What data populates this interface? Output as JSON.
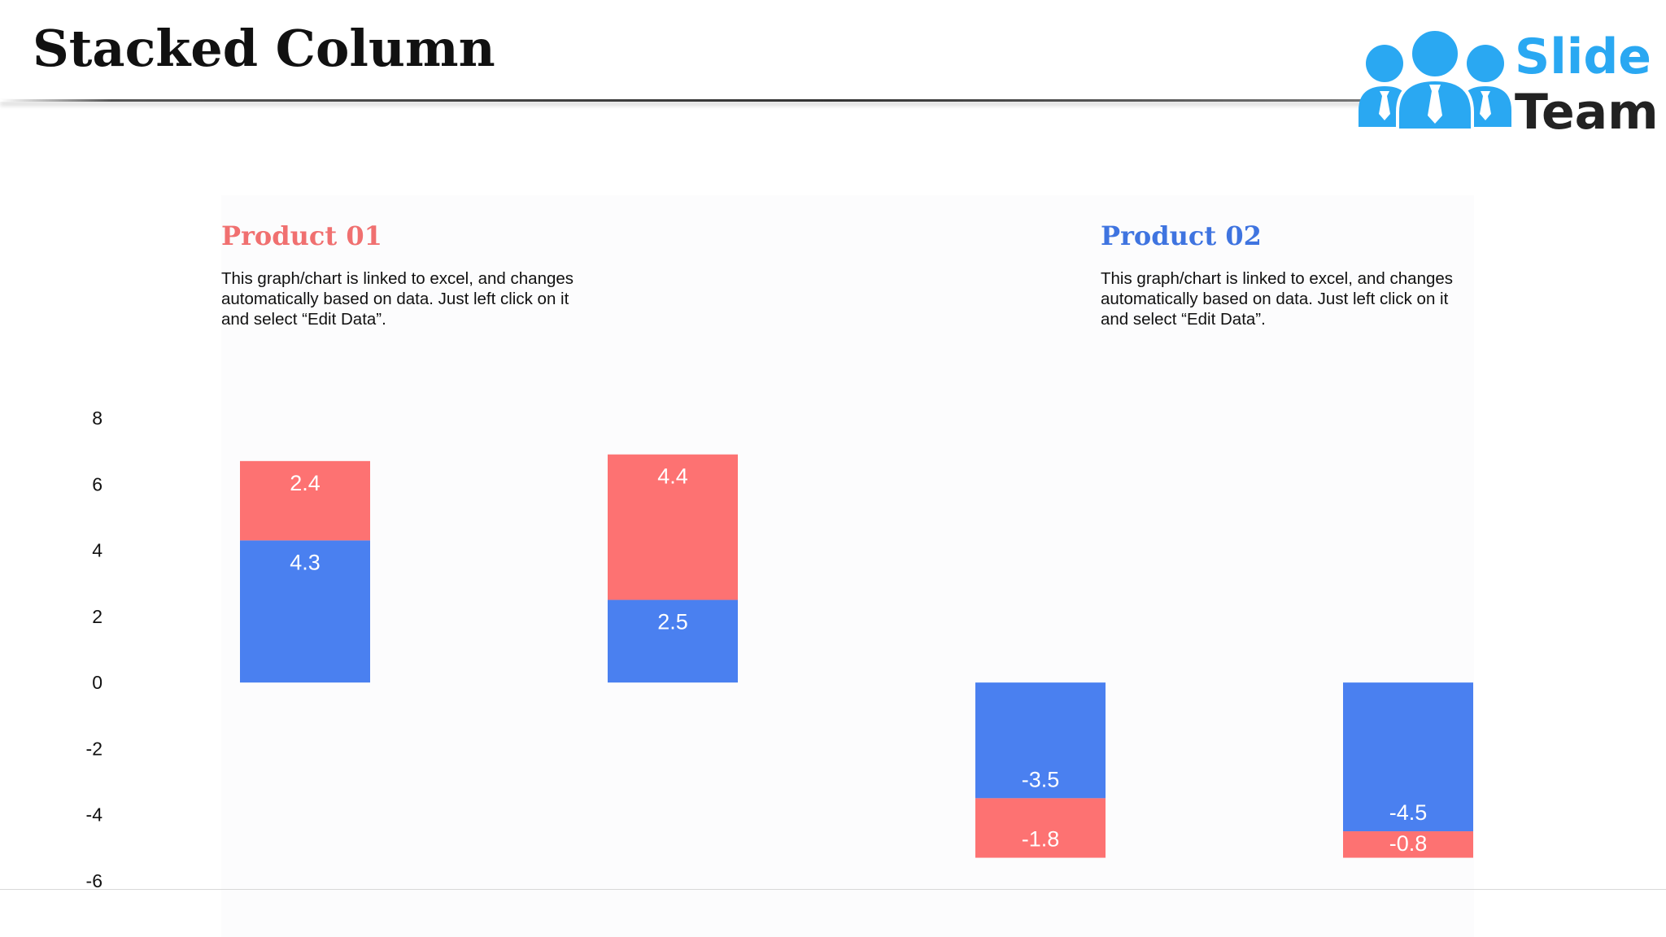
{
  "slide": {
    "title": "Stacked Column"
  },
  "logo": {
    "line1": "Slide",
    "line2": "Team"
  },
  "colors": {
    "series_blue": "#4a80f0",
    "series_red": "#fd7272",
    "product1_title": "#f07070",
    "product2_title": "#3f74e0"
  },
  "products": [
    {
      "title": "Product 01",
      "description": "This graph/chart is linked to excel, and changes automatically based on data. Just left click on it and select “Edit Data”."
    },
    {
      "title": "Product 02",
      "description": "This graph/chart is linked to excel, and changes automatically based on data. Just left click on it and select “Edit Data”."
    }
  ],
  "chart_data": {
    "type": "bar",
    "stacked": true,
    "categories": [
      "",
      "",
      "",
      ""
    ],
    "series": [
      {
        "values": [
          4.3,
          2.5,
          -3.5,
          -4.5
        ],
        "color": "#4a80f0"
      },
      {
        "values": [
          2.4,
          4.4,
          -1.8,
          -0.8
        ],
        "color": "#fd7272"
      }
    ],
    "ylim": [
      -6,
      8
    ],
    "yticks": [
      8,
      6,
      4,
      2,
      0,
      -2,
      -4,
      -6
    ],
    "title": "",
    "xlabel": "",
    "ylabel": "",
    "legend": "none",
    "grid": false
  }
}
